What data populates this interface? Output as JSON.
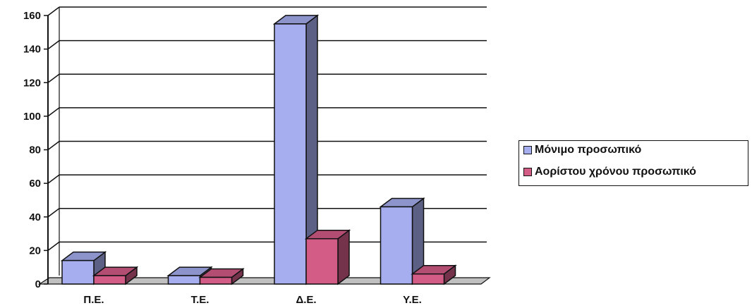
{
  "chart_data": {
    "type": "bar",
    "categories": [
      "Π.Ε.",
      "Τ.Ε.",
      "Δ.Ε.",
      "Υ.Ε."
    ],
    "series": [
      {
        "name": "Μόνιμο προσωπικό",
        "values": [
          14,
          5,
          155,
          46
        ],
        "color": "#a6aef0"
      },
      {
        "name": "Αορίστου χρόνου προσωπικό",
        "values": [
          5,
          4,
          27,
          6
        ],
        "color": "#d25c86"
      }
    ],
    "ylim": [
      0,
      160
    ],
    "yticks": [
      0,
      20,
      40,
      60,
      80,
      100,
      120,
      140,
      160
    ],
    "grid": true,
    "legend_position": "right",
    "three_d": true
  }
}
